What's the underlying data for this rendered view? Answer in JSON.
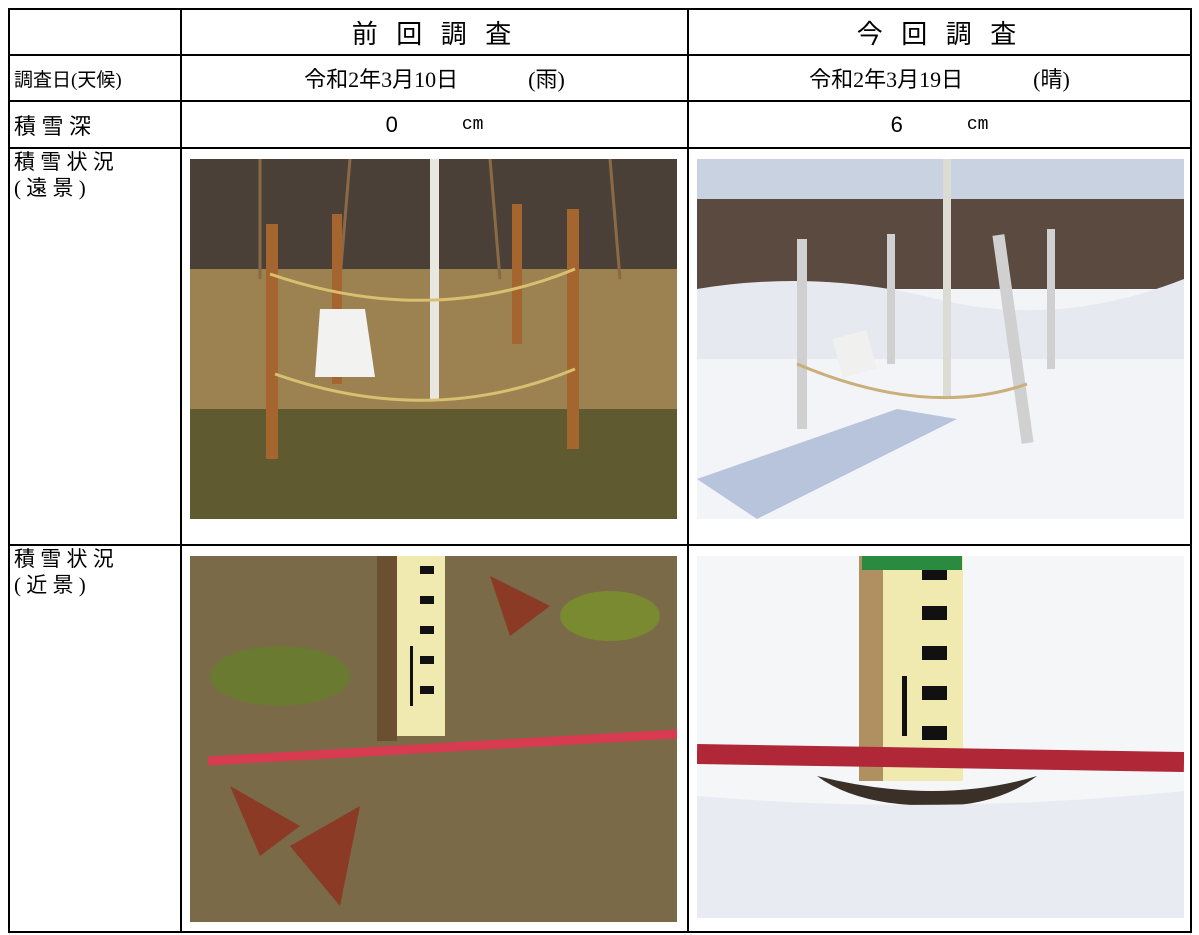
{
  "table": {
    "header": {
      "previous": "前 回 調 査",
      "current": "今 回 調 査"
    },
    "date_row": {
      "label": "調査日(天候)",
      "previous": {
        "date": "令和2年3月10日",
        "weather": "(雨)"
      },
      "current": {
        "date": "令和2年3月19日",
        "weather": "(晴)"
      }
    },
    "depth_row": {
      "label": "積 雪 深",
      "previous": {
        "value": 0,
        "unit": "cm"
      },
      "current": {
        "value": 6,
        "unit": "cm"
      }
    },
    "far_row": {
      "label_line1": "積 雪 状 況",
      "label_line2": "( 遠 景 )"
    },
    "near_row": {
      "label_line1": "積 雪 状 況",
      "label_line2": "( 近 景 )"
    }
  }
}
